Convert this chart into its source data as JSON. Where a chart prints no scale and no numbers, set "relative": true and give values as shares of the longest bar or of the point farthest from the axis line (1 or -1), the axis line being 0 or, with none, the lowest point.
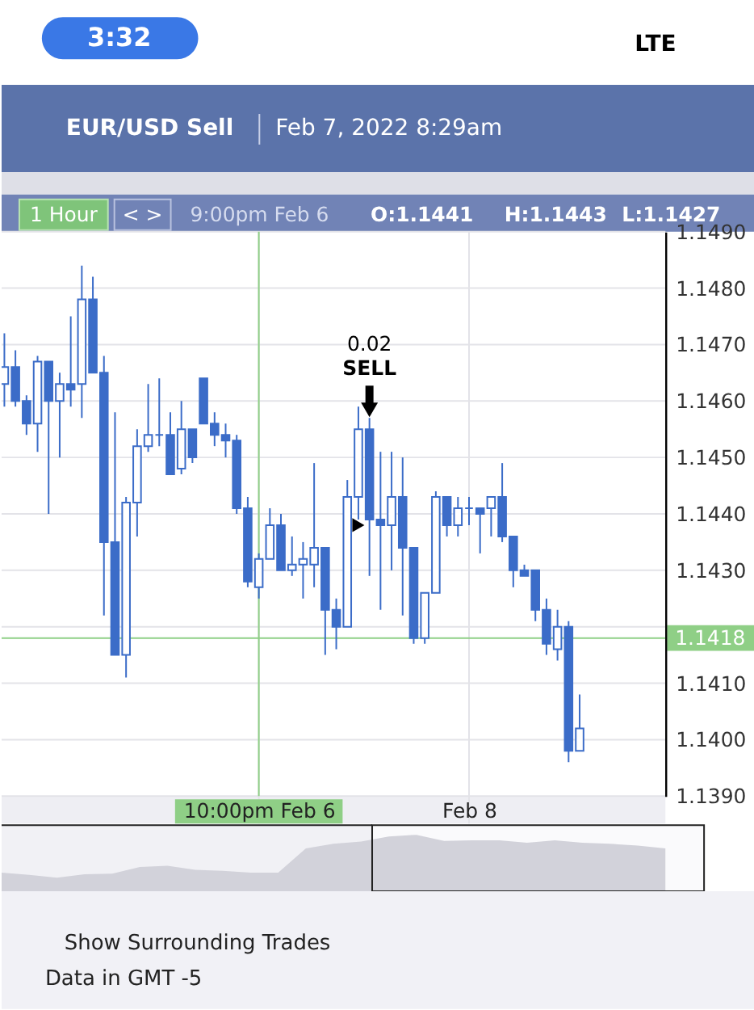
{
  "chart_data": [
    {
      "type": "candlestick",
      "title": "EUR/USD Sell",
      "subtitle": "Feb 7, 2022 8:29am",
      "categories": [
        null,
        null,
        null,
        null,
        null,
        null,
        null,
        null,
        null,
        null,
        null,
        null,
        null,
        null,
        null,
        null,
        null,
        null,
        null,
        null,
        null,
        null,
        null,
        "10:00pm Feb 6",
        null,
        null,
        null,
        null,
        null,
        null,
        null,
        null,
        null,
        null,
        null,
        null,
        null,
        null,
        null,
        null,
        null,
        null,
        "Feb 8",
        null,
        null,
        null,
        null,
        null,
        null,
        null,
        null,
        null,
        null
      ],
      "ohlc": [
        [
          1.1463,
          1.1472,
          1.1459,
          1.1466
        ],
        [
          1.1466,
          1.1469,
          1.1459,
          1.146
        ],
        [
          1.146,
          1.1461,
          1.1454,
          1.1456
        ],
        [
          1.1456,
          1.1468,
          1.1451,
          1.1467
        ],
        [
          1.1467,
          1.1467,
          1.144,
          1.146
        ],
        [
          1.146,
          1.1465,
          1.145,
          1.1463
        ],
        [
          1.1463,
          1.1475,
          1.1459,
          1.1462
        ],
        [
          1.1463,
          1.1484,
          1.1457,
          1.1478
        ],
        [
          1.1478,
          1.1482,
          1.1465,
          1.1465
        ],
        [
          1.1465,
          1.1468,
          1.1422,
          1.1435
        ],
        [
          1.1435,
          1.1458,
          1.1415,
          1.1415
        ],
        [
          1.1415,
          1.1443,
          1.1411,
          1.1442
        ],
        [
          1.1442,
          1.1455,
          1.1436,
          1.1452
        ],
        [
          1.1452,
          1.1463,
          1.1451,
          1.1454
        ],
        [
          1.1454,
          1.1464,
          1.1452,
          1.1454
        ],
        [
          1.1454,
          1.1458,
          1.1447,
          1.1447
        ],
        [
          1.1448,
          1.146,
          1.1447,
          1.1455
        ],
        [
          1.1455,
          1.1455,
          1.1449,
          1.145
        ],
        [
          1.1464,
          1.1464,
          1.1456,
          1.1456
        ],
        [
          1.1456,
          1.1458,
          1.1452,
          1.1454
        ],
        [
          1.1454,
          1.1456,
          1.145,
          1.1453
        ],
        [
          1.1453,
          1.1454,
          1.144,
          1.1441
        ],
        [
          1.1441,
          1.1443,
          1.1427,
          1.1428
        ],
        [
          1.1427,
          1.1433,
          1.1425,
          1.1432
        ],
        [
          1.1432,
          1.1441,
          1.1432,
          1.1438
        ],
        [
          1.1438,
          1.144,
          1.143,
          1.143
        ],
        [
          1.143,
          1.1436,
          1.1429,
          1.1431
        ],
        [
          1.1431,
          1.1435,
          1.1425,
          1.1432
        ],
        [
          1.1431,
          1.1449,
          1.1427,
          1.1434
        ],
        [
          1.1434,
          1.1434,
          1.1415,
          1.1423
        ],
        [
          1.1423,
          1.1425,
          1.1416,
          1.142
        ],
        [
          1.142,
          1.1446,
          1.142,
          1.1443
        ],
        [
          1.1443,
          1.1459,
          1.1439,
          1.1455
        ],
        [
          1.1455,
          1.1457,
          1.1429,
          1.1439
        ],
        [
          1.1439,
          1.1451,
          1.1423,
          1.1438
        ],
        [
          1.1438,
          1.1451,
          1.143,
          1.1443
        ],
        [
          1.1443,
          1.145,
          1.1422,
          1.1434
        ],
        [
          1.1434,
          1.1434,
          1.1417,
          1.1418
        ],
        [
          1.1418,
          1.1426,
          1.1417,
          1.1426
        ],
        [
          1.1426,
          1.1444,
          1.1426,
          1.1443
        ],
        [
          1.1443,
          1.1443,
          1.1436,
          1.1438
        ],
        [
          1.1438,
          1.1443,
          1.1436,
          1.1441
        ],
        [
          1.1441,
          1.1443,
          1.1438,
          1.1441
        ],
        [
          1.1441,
          1.1441,
          1.1433,
          1.144
        ],
        [
          1.1441,
          1.1443,
          1.1436,
          1.1443
        ],
        [
          1.1443,
          1.1449,
          1.1435,
          1.1436
        ],
        [
          1.1436,
          1.1436,
          1.1427,
          1.143
        ],
        [
          1.143,
          1.1431,
          1.1429,
          1.1429
        ],
        [
          1.143,
          1.143,
          1.1421,
          1.1423
        ],
        [
          1.1423,
          1.1425,
          1.1415,
          1.1417
        ],
        [
          1.1416,
          1.1423,
          1.1414,
          1.142
        ],
        [
          1.142,
          1.1421,
          1.1396,
          1.1398
        ],
        [
          1.1398,
          1.1408,
          1.1398,
          1.1402
        ]
      ],
      "color": "#3b6cc8",
      "ylim": [
        1.139,
        1.149
      ],
      "yticks": [
        {
          "value": 1.139,
          "label": "1.1390"
        },
        {
          "value": 1.14,
          "label": "1.1400"
        },
        {
          "value": 1.141,
          "label": "1.1410"
        },
        {
          "value": 1.142,
          "label": null
        },
        {
          "value": 1.143,
          "label": "1.1430"
        },
        {
          "value": 1.144,
          "label": "1.1440"
        },
        {
          "value": 1.145,
          "label": "1.1450"
        },
        {
          "value": 1.146,
          "label": "1.1460"
        },
        {
          "value": 1.147,
          "label": "1.1470"
        },
        {
          "value": 1.148,
          "label": "1.1480"
        },
        {
          "value": 1.149,
          "label": "1.1490"
        }
      ],
      "grid": true,
      "ref_lines": [
        {
          "axis": "y",
          "value": 1.1418,
          "label": "1.1418",
          "color": "#8fcf86"
        },
        {
          "axis": "x",
          "value": "10:00pm Feb 6",
          "color": "#8fcf86"
        }
      ],
      "series": [
        {
          "type": "scatter",
          "values": [
            null,
            null,
            null,
            null,
            null,
            null,
            null,
            null,
            null,
            null,
            null,
            null,
            null,
            null,
            null,
            null,
            null,
            null,
            null,
            null,
            null,
            null,
            null,
            null,
            null,
            null,
            null,
            null,
            null,
            null,
            null,
            null,
            1.1438,
            null,
            null,
            null,
            null,
            null,
            null,
            null,
            null,
            null,
            null,
            null,
            null,
            null,
            null,
            null,
            null,
            null,
            null,
            null,
            null
          ],
          "color": "#000000",
          "marker": "triangle"
        }
      ],
      "annotations": [
        "3:32",
        "LTE",
        "1 Hour",
        "< >",
        "9:00pm Feb 6",
        "O:1.1441",
        "H:1.1443",
        "L:1.1427",
        "Show Surrounding Trades",
        "Data in GMT -5",
        "0.02",
        {
          "text": "SELL",
          "y": 1.1457
        }
      ]
    },
    {
      "type": "area",
      "relative": true,
      "categories": [
        null,
        null,
        null,
        null,
        null,
        null,
        null,
        null,
        null,
        null,
        null,
        null,
        null,
        null,
        null,
        null,
        null,
        null,
        null,
        null,
        null,
        null,
        null,
        null,
        null
      ],
      "values": [
        0.33,
        0.29,
        0.24,
        0.3,
        0.31,
        0.43,
        0.45,
        0.38,
        0.36,
        0.33,
        0.33,
        0.76,
        0.84,
        0.88,
        0.97,
        1,
        0.89,
        0.9,
        0.9,
        0.86,
        0.9,
        0.86,
        0.84,
        0.81,
        0.76
      ],
      "color": "#d2d2da"
    }
  ]
}
